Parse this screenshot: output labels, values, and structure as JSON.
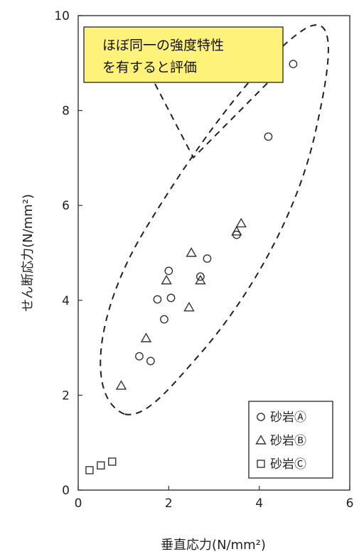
{
  "chart_data": {
    "type": "scatter",
    "xlabel": "垂直応力(N/mm²)",
    "ylabel": "せん断応力(N/mm²)",
    "xlim": [
      0,
      6
    ],
    "ylim": [
      0,
      10
    ],
    "x_ticks": [
      "0",
      "2",
      "4",
      "6"
    ],
    "y_ticks": [
      "0",
      "2",
      "4",
      "6",
      "8",
      "10"
    ],
    "grid": false,
    "legend_position": "bottom-right",
    "series": [
      {
        "name": "砂岩Ⓐ",
        "marker": "circle",
        "points": [
          [
            4.75,
            8.98
          ],
          [
            4.2,
            7.45
          ],
          [
            3.5,
            5.38
          ],
          [
            2.85,
            4.88
          ],
          [
            2.7,
            4.5
          ],
          [
            2.0,
            4.62
          ],
          [
            1.75,
            4.02
          ],
          [
            2.05,
            4.05
          ],
          [
            1.9,
            3.6
          ],
          [
            1.35,
            2.82
          ],
          [
            1.6,
            2.72
          ]
        ]
      },
      {
        "name": "砂岩Ⓑ",
        "marker": "triangle",
        "points": [
          [
            3.6,
            5.62
          ],
          [
            3.5,
            5.45
          ],
          [
            2.5,
            5.0
          ],
          [
            2.7,
            4.42
          ],
          [
            1.95,
            4.42
          ],
          [
            2.45,
            3.85
          ],
          [
            1.5,
            3.2
          ],
          [
            0.95,
            2.2
          ]
        ]
      },
      {
        "name": "砂岩Ⓒ",
        "marker": "square",
        "points": [
          [
            0.25,
            0.42
          ],
          [
            0.5,
            0.52
          ],
          [
            0.75,
            0.6
          ]
        ]
      }
    ],
    "annotation": {
      "line1": "ほぼ同一の強度特性",
      "line2": "を有すると評価",
      "box_color": "#fff27a"
    }
  }
}
